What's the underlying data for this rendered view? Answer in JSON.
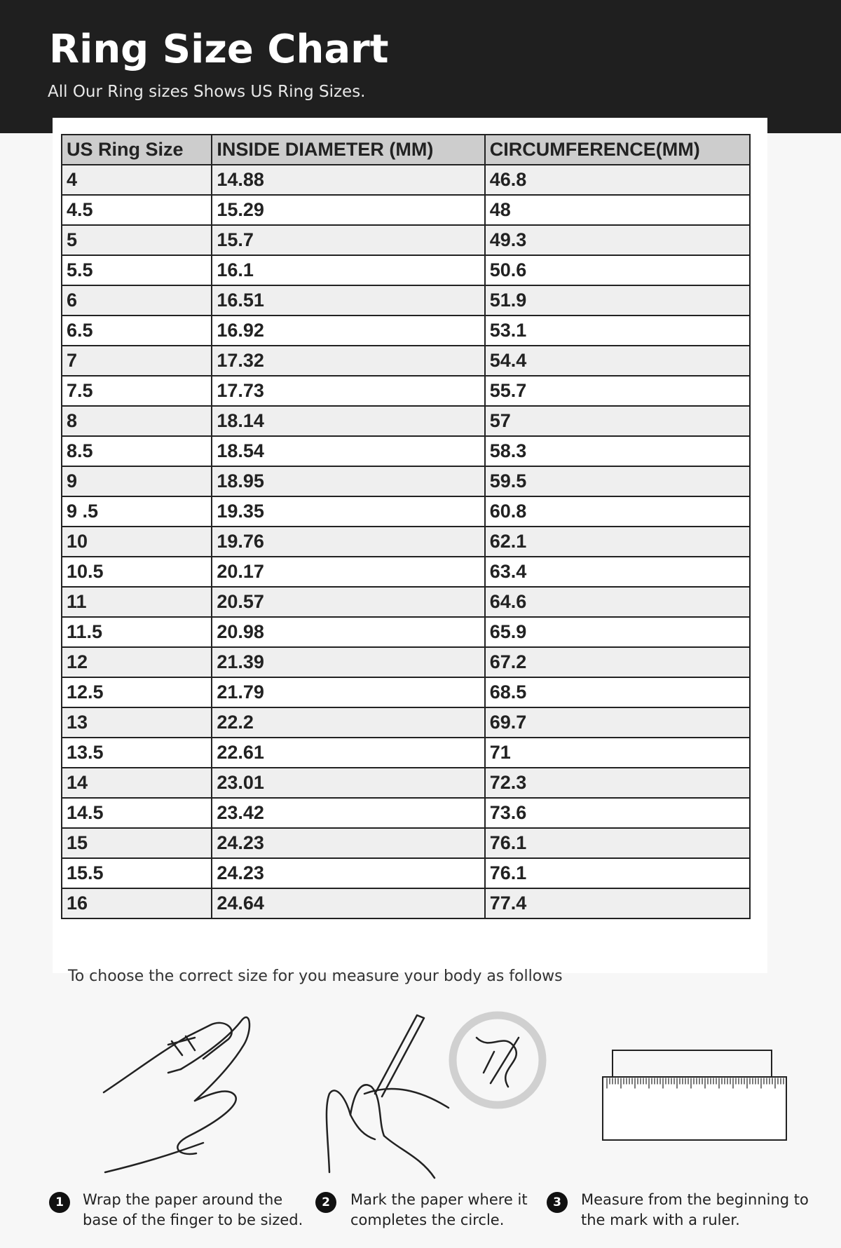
{
  "header": {
    "title": "Ring Size Chart",
    "subtitle": "All Our Ring sizes Shows US Ring Sizes."
  },
  "table": {
    "columns": [
      "US Ring Size",
      "INSIDE DIAMETER (MM)",
      "CIRCUMFERENCE(MM)"
    ],
    "rows": [
      [
        "4",
        "14.88",
        "46.8"
      ],
      [
        "4.5",
        "15.29",
        "48"
      ],
      [
        "5",
        "15.7",
        "49.3"
      ],
      [
        "5.5",
        "16.1",
        "50.6"
      ],
      [
        "6",
        "16.51",
        "51.9"
      ],
      [
        "6.5",
        "16.92",
        "53.1"
      ],
      [
        "7",
        "17.32",
        "54.4"
      ],
      [
        "7.5",
        "17.73",
        "55.7"
      ],
      [
        "8",
        "18.14",
        "57"
      ],
      [
        "8.5",
        "18.54",
        "58.3"
      ],
      [
        "9",
        "18.95",
        "59.5"
      ],
      [
        "9 .5",
        "19.35",
        "60.8"
      ],
      [
        "10",
        "19.76",
        "62.1"
      ],
      [
        "10.5",
        "20.17",
        "63.4"
      ],
      [
        "11",
        "20.57",
        "64.6"
      ],
      [
        "11.5",
        "20.98",
        "65.9"
      ],
      [
        "12",
        "21.39",
        "67.2"
      ],
      [
        "12.5",
        "21.79",
        "68.5"
      ],
      [
        "13",
        "22.2",
        "69.7"
      ],
      [
        "13.5",
        "22.61",
        "71"
      ],
      [
        "14",
        "23.01",
        "72.3"
      ],
      [
        "14.5",
        "23.42",
        "73.6"
      ],
      [
        "15",
        "24.23",
        "76.1"
      ],
      [
        "15.5",
        "24.23",
        "76.1"
      ],
      [
        "16",
        "24.64",
        "77.4"
      ]
    ]
  },
  "instructions": {
    "intro": "To choose the correct size for you measure your body as follows",
    "steps": [
      {
        "number": "1",
        "text": "Wrap the paper around the base of the finger to be sized."
      },
      {
        "number": "2",
        "text": "Mark the paper where it completes the circle."
      },
      {
        "number": "3",
        "text": "Measure from the beginning to the mark with a ruler."
      }
    ]
  }
}
